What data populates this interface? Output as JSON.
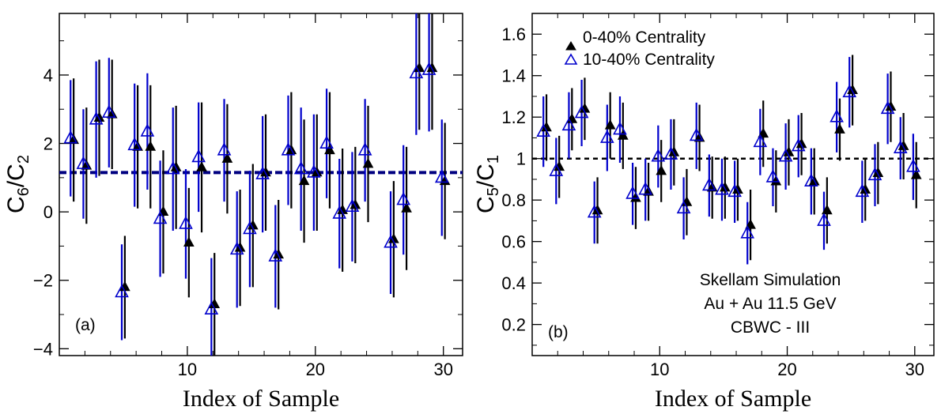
{
  "colors": {
    "series_a": "#000000",
    "series_b": "#0000cc",
    "reference": "#000000",
    "reference_a": "#000080"
  },
  "chart_data": [
    {
      "type": "scatter",
      "panel_label": "(a)",
      "xlabel": "Index of Sample",
      "ylabel": {
        "base": "C",
        "sub1": "6",
        "slash": "/C",
        "sub2": "2"
      },
      "xlim": [
        0,
        31.5
      ],
      "ylim": [
        -4.2,
        5.8
      ],
      "xticks": [
        10,
        20,
        30
      ],
      "yticks": [
        -4,
        -2,
        0,
        2,
        4
      ],
      "reference_line": 1.15,
      "series": [
        {
          "name": "0-40% Centrality",
          "marker": "filled-triangle",
          "x": [
            1,
            2,
            3,
            4,
            5,
            6,
            7,
            8,
            9,
            10,
            11,
            12,
            13,
            14,
            15,
            16,
            17,
            18,
            19,
            20,
            21,
            22,
            23,
            24,
            25,
            26,
            27,
            28,
            29,
            30
          ],
          "y": [
            2.1,
            1.35,
            2.75,
            2.85,
            -2.2,
            1.9,
            1.9,
            0.0,
            1.3,
            -0.9,
            1.3,
            -2.7,
            1.55,
            -1.05,
            -0.4,
            1.15,
            -1.25,
            1.8,
            0.9,
            1.15,
            1.8,
            0.05,
            0.2,
            1.4,
            null,
            -0.8,
            0.1,
            4.2,
            4.2,
            0.9
          ],
          "err": [
            1.8,
            1.7,
            1.7,
            1.6,
            1.5,
            1.8,
            1.8,
            1.8,
            1.8,
            1.6,
            1.9,
            1.5,
            1.6,
            1.7,
            1.8,
            1.7,
            1.6,
            1.7,
            1.8,
            1.7,
            1.7,
            1.8,
            1.7,
            1.7,
            null,
            1.7,
            1.8,
            1.8,
            1.8,
            1.7
          ]
        },
        {
          "name": "10-40% Centrality",
          "marker": "open-triangle",
          "x": [
            1,
            2,
            3,
            4,
            5,
            6,
            7,
            8,
            9,
            10,
            11,
            12,
            13,
            14,
            15,
            16,
            17,
            18,
            19,
            20,
            21,
            22,
            23,
            24,
            25,
            26,
            27,
            28,
            29,
            30
          ],
          "y": [
            2.15,
            1.4,
            2.7,
            2.9,
            -2.35,
            1.95,
            2.35,
            -0.2,
            1.25,
            -0.35,
            1.6,
            -2.85,
            1.8,
            -1.1,
            -0.5,
            1.1,
            -1.3,
            1.8,
            1.25,
            1.15,
            2.0,
            -0.05,
            0.15,
            1.8,
            null,
            -0.9,
            0.35,
            4.05,
            4.15,
            1.0
          ],
          "err": [
            1.7,
            1.6,
            1.7,
            1.6,
            1.4,
            1.8,
            1.7,
            1.7,
            1.8,
            1.6,
            1.6,
            1.5,
            1.5,
            1.7,
            1.7,
            1.7,
            1.5,
            1.6,
            1.8,
            1.7,
            1.6,
            1.6,
            1.6,
            1.5,
            null,
            1.5,
            1.6,
            1.8,
            1.8,
            1.7
          ]
        }
      ]
    },
    {
      "type": "scatter",
      "panel_label": "(b)",
      "xlabel": "Index of Sample",
      "ylabel": {
        "base": "C",
        "sub1": "5",
        "slash": "/C",
        "sub2": "1"
      },
      "xlim": [
        0,
        31.5
      ],
      "ylim": [
        0.05,
        1.7
      ],
      "xticks": [
        10,
        20,
        30
      ],
      "yticks": [
        0.2,
        0.4,
        0.6,
        0.8,
        1,
        1.2,
        1.4,
        1.6
      ],
      "ytick_labels": [
        "0.2",
        "0.4",
        "0.6",
        "0.8",
        "1",
        "1.2",
        "1.4",
        "1.6"
      ],
      "reference_line": 1.0,
      "legend": [
        "0-40% Centrality",
        "10-40% Centrality"
      ],
      "annotation": [
        "Skellam Simulation",
        "Au + Au 11.5 GeV",
        "CBWC - III"
      ],
      "series": [
        {
          "name": "0-40% Centrality",
          "marker": "filled-triangle",
          "x": [
            1,
            2,
            3,
            4,
            5,
            6,
            7,
            8,
            9,
            10,
            11,
            12,
            13,
            14,
            15,
            16,
            17,
            18,
            19,
            20,
            21,
            22,
            23,
            24,
            25,
            26,
            27,
            28,
            29,
            30
          ],
          "y": [
            1.15,
            0.96,
            1.19,
            1.24,
            0.75,
            1.16,
            1.11,
            0.81,
            0.84,
            0.94,
            1.03,
            0.79,
            1.1,
            0.86,
            0.86,
            0.85,
            0.68,
            1.12,
            0.89,
            1.03,
            1.07,
            0.89,
            0.75,
            1.14,
            1.33,
            0.85,
            0.93,
            1.25,
            1.06,
            0.92
          ],
          "err": [
            0.16,
            0.15,
            0.15,
            0.15,
            0.16,
            0.16,
            0.16,
            0.15,
            0.14,
            0.15,
            0.16,
            0.16,
            0.16,
            0.15,
            0.15,
            0.15,
            0.17,
            0.16,
            0.15,
            0.16,
            0.15,
            0.16,
            0.16,
            0.15,
            0.17,
            0.15,
            0.15,
            0.17,
            0.16,
            0.16
          ]
        },
        {
          "name": "10-40% Centrality",
          "marker": "open-triangle",
          "x": [
            1,
            2,
            3,
            4,
            5,
            6,
            7,
            8,
            9,
            10,
            11,
            12,
            13,
            14,
            15,
            16,
            17,
            18,
            19,
            20,
            21,
            22,
            23,
            24,
            25,
            26,
            27,
            28,
            29,
            30
          ],
          "y": [
            1.13,
            0.94,
            1.16,
            1.22,
            0.74,
            1.1,
            1.14,
            0.83,
            0.85,
            1.01,
            1.02,
            0.76,
            1.11,
            0.87,
            0.85,
            0.84,
            0.64,
            1.08,
            0.91,
            1.01,
            1.06,
            0.89,
            0.7,
            1.2,
            1.32,
            0.84,
            0.92,
            1.24,
            1.05,
            0.96
          ],
          "err": [
            0.17,
            0.16,
            0.16,
            0.16,
            0.15,
            0.16,
            0.16,
            0.15,
            0.15,
            0.15,
            0.17,
            0.15,
            0.16,
            0.15,
            0.15,
            0.15,
            0.15,
            0.16,
            0.14,
            0.16,
            0.15,
            0.16,
            0.14,
            0.17,
            0.17,
            0.15,
            0.15,
            0.17,
            0.15,
            0.16
          ]
        }
      ]
    }
  ]
}
